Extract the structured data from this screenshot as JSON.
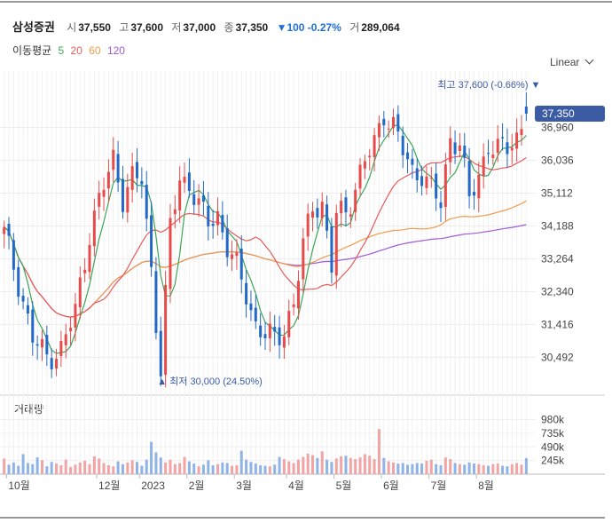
{
  "header": {
    "name": "삼성증권",
    "open_label": "시",
    "open": "37,550",
    "high_label": "고",
    "high": "37,600",
    "low_label": "저",
    "low": "37,000",
    "close_label": "종",
    "close": "37,350",
    "change_arrow": "▼",
    "change": "100 -0.27%",
    "volume_label": "거",
    "volume": "289,064"
  },
  "ma_legend": {
    "label": "이동평균",
    "items": [
      {
        "period": "5",
        "color": "#3aa757"
      },
      {
        "period": "20",
        "color": "#e85a5a"
      },
      {
        "period": "60",
        "color": "#f29a4a"
      },
      {
        "period": "120",
        "color": "#a05ad9"
      }
    ]
  },
  "scale_label": "Linear",
  "volume_title": "거래량",
  "annotations": {
    "high_text": "최고 37,600 (-0.66%)",
    "high_arrow": "▼",
    "low_text": "최저 30,000 (24.50%)",
    "low_arrow": "▲"
  },
  "last_price_badge": "37,350",
  "colors": {
    "up": "#e84a4a",
    "down": "#2168c8",
    "badge": "#3b5ba5"
  },
  "chart_data": {
    "type": "candlestick",
    "price_axis": {
      "ylim": [
        29800,
        38300
      ],
      "ticks": [
        "36,960",
        "36,036",
        "35,112",
        "34,188",
        "33,264",
        "32,340",
        "31,416",
        "30,492"
      ],
      "tick_values": [
        36960,
        36036,
        35112,
        34188,
        33264,
        32340,
        31416,
        30492
      ]
    },
    "volume_axis": {
      "ylim": [
        0,
        1100000
      ],
      "ticks": [
        "980k",
        "735k",
        "490k",
        "245k"
      ],
      "tick_values": [
        980000,
        735000,
        490000,
        245000
      ]
    },
    "x_labels": [
      "10월",
      "12월",
      "2023",
      "2월",
      "3월",
      "4월",
      "5월",
      "6월",
      "7월",
      "8월"
    ],
    "x_label_index": [
      1,
      20,
      29,
      39,
      49,
      60,
      70,
      80,
      90,
      100
    ],
    "anchors": [
      [
        0,
        34000
      ],
      [
        3,
        32600
      ],
      [
        6,
        31000
      ],
      [
        9,
        30500
      ],
      [
        12,
        30700
      ],
      [
        15,
        31800
      ],
      [
        18,
        34000
      ],
      [
        21,
        35300
      ],
      [
        23,
        36100
      ],
      [
        25,
        35000
      ],
      [
        27,
        35500
      ],
      [
        29,
        35500
      ],
      [
        31,
        33000
      ],
      [
        33,
        30100
      ],
      [
        35,
        34200
      ],
      [
        37,
        35500
      ],
      [
        39,
        35400
      ],
      [
        41,
        34700
      ],
      [
        43,
        34300
      ],
      [
        45,
        34500
      ],
      [
        47,
        33600
      ],
      [
        49,
        33000
      ],
      [
        51,
        32300
      ],
      [
        53,
        31400
      ],
      [
        55,
        31100
      ],
      [
        57,
        31000
      ],
      [
        59,
        31300
      ],
      [
        61,
        32000
      ],
      [
        63,
        33600
      ],
      [
        65,
        34800
      ],
      [
        67,
        34800
      ],
      [
        69,
        33000
      ],
      [
        70,
        34500
      ],
      [
        72,
        34600
      ],
      [
        74,
        35300
      ],
      [
        76,
        36000
      ],
      [
        78,
        36500
      ],
      [
        80,
        37400
      ],
      [
        82,
        37000
      ],
      [
        84,
        36300
      ],
      [
        86,
        35700
      ],
      [
        88,
        35700
      ],
      [
        90,
        35200
      ],
      [
        92,
        34800
      ],
      [
        94,
        36700
      ],
      [
        96,
        36500
      ],
      [
        98,
        34900
      ],
      [
        100,
        35600
      ],
      [
        102,
        36500
      ],
      [
        104,
        36300
      ],
      [
        106,
        36400
      ],
      [
        108,
        36700
      ],
      [
        110,
        37350
      ]
    ],
    "volume_values": [
      280000,
      170000,
      210000,
      150000,
      360000,
      200000,
      180000,
      300000,
      250000,
      140000,
      220000,
      190000,
      160000,
      260000,
      130000,
      170000,
      210000,
      240000,
      180000,
      320000,
      280000,
      200000,
      160000,
      140000,
      230000,
      180000,
      210000,
      250000,
      220000,
      150000,
      260000,
      580000,
      390000,
      300000,
      210000,
      260000,
      180000,
      200000,
      310000,
      230000,
      190000,
      140000,
      170000,
      250000,
      160000,
      180000,
      210000,
      200000,
      150000,
      160000,
      420000,
      260000,
      220000,
      190000,
      160000,
      150000,
      140000,
      170000,
      310000,
      270000,
      230000,
      200000,
      260000,
      310000,
      370000,
      340000,
      290000,
      410000,
      260000,
      220000,
      280000,
      320000,
      330000,
      290000,
      270000,
      300000,
      360000,
      330000,
      270000,
      810000,
      290000,
      230000,
      210000,
      190000,
      200000,
      170000,
      180000,
      200000,
      190000,
      240000,
      260000,
      180000,
      160000,
      300000,
      270000,
      200000,
      180000,
      170000,
      210000,
      190000,
      180000,
      160000,
      150000,
      180000,
      190000,
      150000,
      140000,
      180000,
      200000,
      170000,
      289064
    ]
  }
}
